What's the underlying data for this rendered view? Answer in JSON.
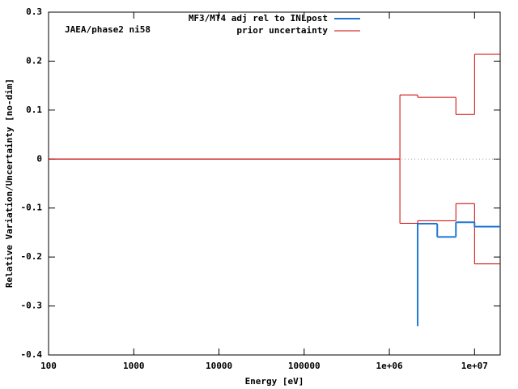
{
  "chart_data": {
    "type": "step",
    "annotation": "JAEA/phase2 ni58",
    "x_label": "Energy [eV]",
    "y_label": "Relative Variation/Uncertainty [no-dim]",
    "log_x": true,
    "zero_line": true,
    "legend": "top",
    "xlim": [
      100,
      20000000
    ],
    "ylim": [
      -0.4,
      0.3
    ],
    "xticks": [
      100,
      1000,
      10000,
      100000,
      {
        "value": 1000000,
        "label": "1e+06"
      },
      {
        "value": 10000000,
        "label": "1e+07"
      }
    ],
    "yticks": [
      -0.4,
      -0.3,
      -0.2,
      -0.1,
      0,
      0.1,
      0.2,
      0.3
    ],
    "series": [
      {
        "name": "MF3/MT4 adj rel to INLpost",
        "color": "#1f77d4",
        "x": [
          2150000,
          2150000,
          3650000,
          6040000,
          10000000
        ],
        "values": [
          -0.341,
          -0.132,
          -0.159,
          -0.129,
          -0.138
        ]
      },
      {
        "name": "prior uncertainty",
        "color": "#cc0000",
        "x": [
          100,
          1330000,
          2150000,
          6040000,
          10000000
        ],
        "values": [
          0,
          0.131,
          0.126,
          0.091,
          0.214
        ],
        "lower_values": [
          0,
          -0.131,
          -0.126,
          -0.091,
          -0.214
        ]
      }
    ]
  }
}
